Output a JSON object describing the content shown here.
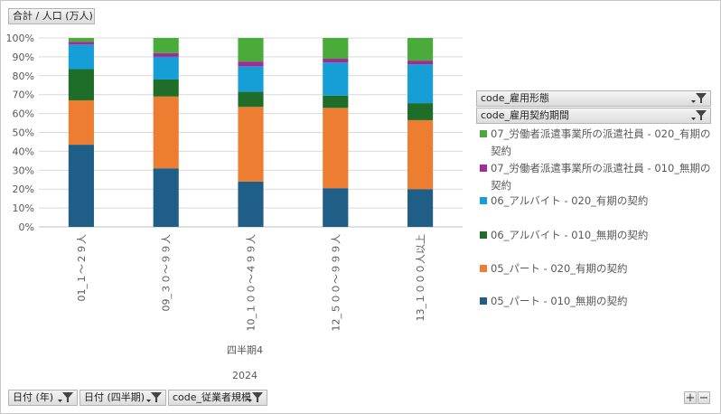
{
  "measure_button": {
    "label": "合計 / 人口 (万人)"
  },
  "legend_headers": [
    {
      "label": "code_雇用形態"
    },
    {
      "label": "code_雇用契約期間"
    }
  ],
  "bottom_buttons": [
    {
      "label": "日付 (年)"
    },
    {
      "label": "日付 (四半期)"
    },
    {
      "label": "code_従業者規模"
    }
  ],
  "corner_buttons": {
    "plus": "+",
    "minus": "−"
  },
  "x_group_labels": {
    "quarter": "四半期4",
    "year": "2024"
  },
  "chart_data": {
    "type": "bar",
    "stacked": "percent",
    "ylim": [
      0,
      100
    ],
    "yticks": [
      "0%",
      "10%",
      "20%",
      "30%",
      "40%",
      "50%",
      "60%",
      "70%",
      "80%",
      "90%",
      "100%"
    ],
    "grid": true,
    "legend_position": "right",
    "categories": [
      "01_１～２９人",
      "09_３０～９９人",
      "10_１００～４９９人",
      "12_５００～９９９人",
      "13_１０００人以上"
    ],
    "series": [
      {
        "name": "05_パート - 010_無期の契約",
        "color": "#1f5f87",
        "values": [
          43.5,
          31.0,
          24.0,
          20.5,
          20.0
        ]
      },
      {
        "name": "05_パート - 020_有期の契約",
        "color": "#ed7d31",
        "values": [
          23.5,
          38.0,
          39.5,
          42.5,
          36.5
        ]
      },
      {
        "name": "06_アルバイト - 010_無期の契約",
        "color": "#1e6e2a",
        "values": [
          16.5,
          9.0,
          8.0,
          6.5,
          9.0
        ]
      },
      {
        "name": "06_アルバイト - 020_有期の契約",
        "color": "#159fd6",
        "values": [
          13.0,
          12.0,
          13.5,
          17.5,
          20.5
        ]
      },
      {
        "name": "07_労働者派遣事業所の派遣社員 - 010_無期の契約",
        "color": "#a12d94",
        "values": [
          1.5,
          2.0,
          2.5,
          2.0,
          2.0
        ]
      },
      {
        "name": "07_労働者派遣事業所の派遣社員 - 020_有期の契約",
        "color": "#4aab3a",
        "values": [
          2.0,
          8.0,
          12.5,
          11.0,
          12.0
        ]
      }
    ]
  }
}
